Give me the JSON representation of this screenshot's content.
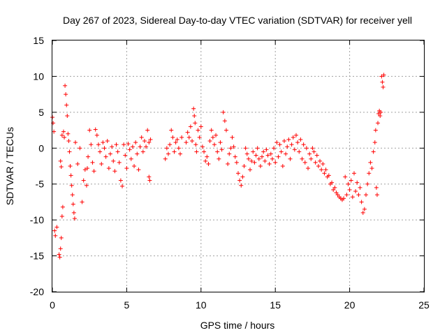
{
  "chart_data": {
    "type": "scatter",
    "title": "Day 267 of 2023, Sidereal Day-to-day VTEC variation (SDTVAR) for receiver yell",
    "xlabel": "GPS time / hours",
    "ylabel": "SDTVAR / TECUs",
    "xlim": [
      0,
      25
    ],
    "ylim": [
      -20,
      15
    ],
    "xticks": [
      0,
      5,
      10,
      15,
      20,
      25
    ],
    "yticks": [
      -20,
      -15,
      -10,
      -5,
      0,
      5,
      10,
      15
    ],
    "xtick_labels": [
      "0",
      "5",
      "10",
      "15",
      "20",
      "25"
    ],
    "ytick_labels": [
      "-20",
      "-15",
      "-10",
      "-5",
      "0",
      "5",
      "10",
      "15"
    ],
    "grid": true,
    "marker": "plus",
    "color": "#ff0000",
    "series": [
      {
        "name": "SDTVAR",
        "points": [
          [
            0.0,
            4.3
          ],
          [
            0.05,
            3.5
          ],
          [
            0.1,
            2.3
          ],
          [
            0.15,
            -11.5
          ],
          [
            0.2,
            -12.2
          ],
          [
            0.3,
            -11.0
          ],
          [
            0.45,
            -14.8
          ],
          [
            0.5,
            -15.2
          ],
          [
            0.55,
            -14.0
          ],
          [
            0.6,
            -12.5
          ],
          [
            0.65,
            -9.5
          ],
          [
            0.7,
            -8.2
          ],
          [
            0.55,
            -1.8
          ],
          [
            0.6,
            -2.6
          ],
          [
            0.65,
            1.8
          ],
          [
            0.75,
            2.3
          ],
          [
            0.8,
            1.5
          ],
          [
            0.85,
            8.7
          ],
          [
            0.9,
            7.5
          ],
          [
            0.95,
            6.0
          ],
          [
            1.0,
            4.5
          ],
          [
            1.05,
            2.0
          ],
          [
            1.1,
            1.0
          ],
          [
            1.15,
            -0.5
          ],
          [
            1.2,
            -2.5
          ],
          [
            1.25,
            -3.8
          ],
          [
            1.3,
            -5.2
          ],
          [
            1.35,
            -6.5
          ],
          [
            1.4,
            -7.8
          ],
          [
            1.45,
            -9.0
          ],
          [
            1.5,
            -9.8
          ],
          [
            1.55,
            0.8
          ],
          [
            1.7,
            -2.2
          ],
          [
            1.85,
            0.0
          ],
          [
            2.0,
            -7.5
          ],
          [
            2.1,
            -4.5
          ],
          [
            2.2,
            -3.0
          ],
          [
            2.3,
            -5.2
          ],
          [
            2.35,
            -2.8
          ],
          [
            2.4,
            -1.2
          ],
          [
            2.5,
            2.5
          ],
          [
            2.6,
            0.5
          ],
          [
            2.7,
            -2.0
          ],
          [
            2.8,
            -3.2
          ],
          [
            2.9,
            2.6
          ],
          [
            3.0,
            1.8
          ],
          [
            3.1,
            0.5
          ],
          [
            3.2,
            -0.5
          ],
          [
            3.3,
            -2.2
          ],
          [
            3.4,
            0.8
          ],
          [
            3.5,
            0.0
          ],
          [
            3.6,
            -1.2
          ],
          [
            3.7,
            1.0
          ],
          [
            3.8,
            -2.8
          ],
          [
            3.9,
            -0.8
          ],
          [
            4.0,
            0.2
          ],
          [
            4.1,
            -1.8
          ],
          [
            4.2,
            -3.2
          ],
          [
            4.3,
            0.5
          ],
          [
            4.4,
            -0.5
          ],
          [
            4.5,
            -2.0
          ],
          [
            4.6,
            -4.5
          ],
          [
            4.7,
            -5.3
          ],
          [
            4.8,
            0.5
          ],
          [
            4.9,
            -1.0
          ],
          [
            5.0,
            -2.8
          ],
          [
            5.1,
            0.6
          ],
          [
            5.2,
            -0.2
          ],
          [
            5.3,
            -1.5
          ],
          [
            5.4,
            0.2
          ],
          [
            5.5,
            -2.5
          ],
          [
            5.6,
            0.8
          ],
          [
            5.7,
            -0.8
          ],
          [
            5.8,
            -3.0
          ],
          [
            5.9,
            0.2
          ],
          [
            6.0,
            1.5
          ],
          [
            6.1,
            -0.5
          ],
          [
            6.2,
            1.0
          ],
          [
            6.3,
            0.2
          ],
          [
            6.4,
            2.5
          ],
          [
            6.5,
            0.8
          ],
          [
            6.5,
            -4.0
          ],
          [
            6.55,
            -4.5
          ],
          [
            6.6,
            1.2
          ],
          [
            7.6,
            -1.5
          ],
          [
            7.7,
            0.0
          ],
          [
            7.8,
            -0.8
          ],
          [
            7.9,
            0.5
          ],
          [
            8.0,
            2.5
          ],
          [
            8.1,
            1.5
          ],
          [
            8.2,
            -0.5
          ],
          [
            8.3,
            0.8
          ],
          [
            8.4,
            1.2
          ],
          [
            8.5,
            0.0
          ],
          [
            8.6,
            -0.8
          ],
          [
            8.7,
            1.5
          ],
          [
            9.0,
            0.8
          ],
          [
            9.1,
            2.2
          ],
          [
            9.2,
            1.5
          ],
          [
            9.3,
            3.0
          ],
          [
            9.4,
            1.0
          ],
          [
            9.5,
            5.5
          ],
          [
            9.55,
            4.5
          ],
          [
            9.6,
            3.5
          ],
          [
            9.65,
            0.5
          ],
          [
            9.7,
            -0.5
          ],
          [
            9.8,
            2.5
          ],
          [
            9.9,
            1.5
          ],
          [
            10.0,
            3.0
          ],
          [
            10.1,
            0.2
          ],
          [
            10.2,
            -0.5
          ],
          [
            10.3,
            -1.8
          ],
          [
            10.4,
            -1.2
          ],
          [
            10.5,
            -2.2
          ],
          [
            10.6,
            1.0
          ],
          [
            10.7,
            2.5
          ],
          [
            10.8,
            1.5
          ],
          [
            10.9,
            0.5
          ],
          [
            11.0,
            1.8
          ],
          [
            11.1,
            -0.5
          ],
          [
            11.2,
            -1.5
          ],
          [
            11.3,
            0.8
          ],
          [
            11.4,
            -0.2
          ],
          [
            11.5,
            5.0
          ],
          [
            11.6,
            3.8
          ],
          [
            11.7,
            2.5
          ],
          [
            11.8,
            -2.2
          ],
          [
            11.9,
            -0.8
          ],
          [
            12.0,
            0.0
          ],
          [
            12.1,
            1.5
          ],
          [
            12.2,
            0.2
          ],
          [
            12.3,
            -1.2
          ],
          [
            12.4,
            -2.0
          ],
          [
            12.5,
            -3.5
          ],
          [
            12.6,
            -4.5
          ],
          [
            12.7,
            -5.2
          ],
          [
            12.8,
            -4.0
          ],
          [
            12.9,
            -2.5
          ],
          [
            13.0,
            0.0
          ],
          [
            13.1,
            -0.8
          ],
          [
            13.2,
            -1.5
          ],
          [
            13.3,
            -3.0
          ],
          [
            13.4,
            -1.8
          ],
          [
            13.5,
            -0.5
          ],
          [
            13.6,
            -2.0
          ],
          [
            13.7,
            -1.0
          ],
          [
            13.8,
            0.0
          ],
          [
            13.9,
            -1.5
          ],
          [
            14.0,
            -2.5
          ],
          [
            14.1,
            -1.2
          ],
          [
            14.2,
            -0.5
          ],
          [
            14.3,
            -1.8
          ],
          [
            14.4,
            -0.2
          ],
          [
            14.5,
            -1.0
          ],
          [
            14.6,
            -2.2
          ],
          [
            14.7,
            -0.8
          ],
          [
            14.8,
            -1.5
          ],
          [
            14.9,
            0.0
          ],
          [
            15.0,
            -2.0
          ],
          [
            15.1,
            0.8
          ],
          [
            15.2,
            -1.2
          ],
          [
            15.3,
            0.5
          ],
          [
            15.4,
            -0.5
          ],
          [
            15.5,
            -2.5
          ],
          [
            15.6,
            1.0
          ],
          [
            15.7,
            -0.8
          ],
          [
            15.8,
            0.2
          ],
          [
            15.9,
            1.2
          ],
          [
            16.0,
            -1.5
          ],
          [
            16.1,
            0.5
          ],
          [
            16.2,
            1.5
          ],
          [
            16.3,
            -0.2
          ],
          [
            16.4,
            1.8
          ],
          [
            16.5,
            0.8
          ],
          [
            16.6,
            -0.5
          ],
          [
            16.7,
            1.2
          ],
          [
            16.8,
            -1.5
          ],
          [
            16.9,
            0.5
          ],
          [
            17.0,
            -2.0
          ],
          [
            17.1,
            0.0
          ],
          [
            17.2,
            -2.8
          ],
          [
            17.3,
            -0.8
          ],
          [
            17.4,
            -1.5
          ],
          [
            17.5,
            0.0
          ],
          [
            17.6,
            -0.5
          ],
          [
            17.7,
            -2.0
          ],
          [
            17.8,
            -1.0
          ],
          [
            17.9,
            -2.5
          ],
          [
            18.0,
            -1.8
          ],
          [
            18.1,
            -3.0
          ],
          [
            18.2,
            -2.2
          ],
          [
            18.3,
            -3.5
          ],
          [
            18.4,
            -3.0
          ],
          [
            18.5,
            -4.0
          ],
          [
            18.6,
            -3.8
          ],
          [
            18.7,
            -5.0
          ],
          [
            18.8,
            -4.8
          ],
          [
            18.9,
            -5.8
          ],
          [
            19.0,
            -5.5
          ],
          [
            19.1,
            -6.2
          ],
          [
            19.2,
            -6.5
          ],
          [
            19.3,
            -6.8
          ],
          [
            19.4,
            -7.0
          ],
          [
            19.5,
            -7.2
          ],
          [
            19.6,
            -7.0
          ],
          [
            19.7,
            -4.0
          ],
          [
            19.8,
            -6.5
          ],
          [
            19.9,
            -5.0
          ],
          [
            20.0,
            -5.8
          ],
          [
            20.1,
            -4.5
          ],
          [
            20.2,
            -6.8
          ],
          [
            20.3,
            -3.5
          ],
          [
            20.4,
            -6.0
          ],
          [
            20.5,
            -4.8
          ],
          [
            20.6,
            -6.5
          ],
          [
            20.7,
            -5.5
          ],
          [
            20.8,
            -7.5
          ],
          [
            20.9,
            -9.0
          ],
          [
            21.0,
            -8.5
          ],
          [
            21.1,
            -6.5
          ],
          [
            21.2,
            -5.0
          ],
          [
            21.3,
            -3.5
          ],
          [
            21.4,
            -2.0
          ],
          [
            21.5,
            -2.8
          ],
          [
            21.6,
            -0.5
          ],
          [
            21.7,
            0.8
          ],
          [
            21.75,
            2.5
          ],
          [
            21.8,
            -5.5
          ],
          [
            21.85,
            -6.5
          ],
          [
            21.9,
            3.5
          ],
          [
            21.95,
            4.8
          ],
          [
            22.0,
            5.2
          ],
          [
            22.05,
            4.5
          ],
          [
            22.1,
            5.0
          ],
          [
            22.15,
            10.0
          ],
          [
            22.2,
            9.2
          ],
          [
            22.25,
            8.5
          ],
          [
            22.3,
            10.2
          ]
        ]
      }
    ]
  }
}
